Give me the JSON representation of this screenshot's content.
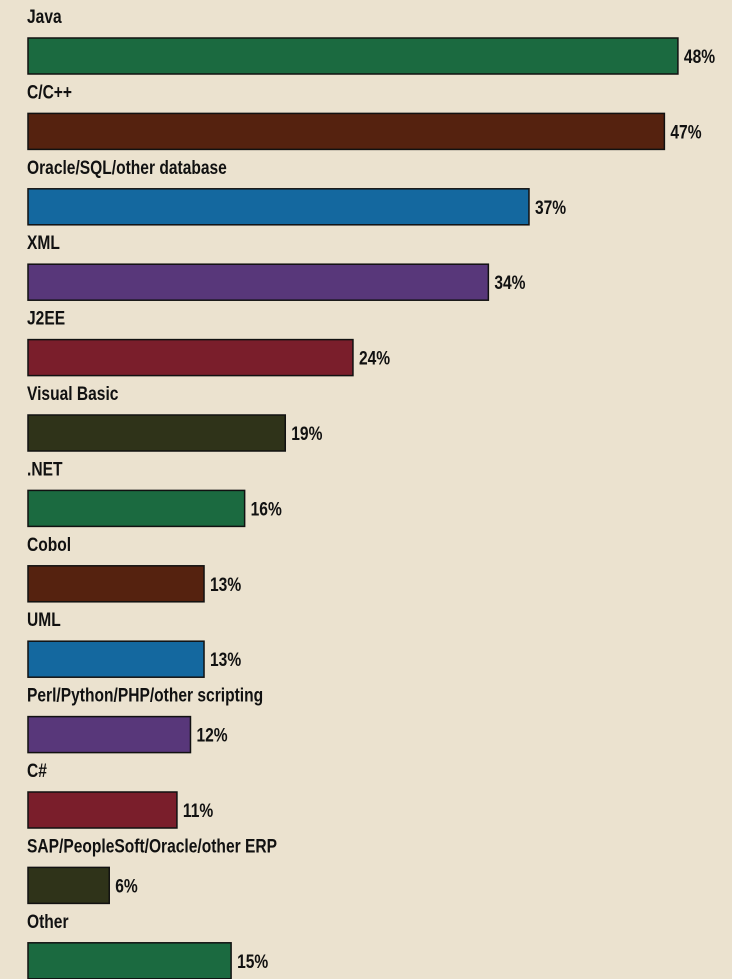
{
  "chart_data": {
    "type": "bar",
    "orientation": "horizontal",
    "categories": [
      "Java",
      "C/C++",
      "Oracle/SQL/other database",
      "XML",
      "J2EE",
      "Visual Basic",
      ".NET",
      "Cobol",
      "UML",
      "Perl/Python/PHP/other scripting",
      "C#",
      "SAP/PeopleSoft/Oracle/other ERP",
      "Other"
    ],
    "values": [
      48,
      47,
      37,
      34,
      24,
      19,
      16,
      13,
      13,
      12,
      11,
      6,
      15
    ],
    "value_labels": [
      "48%",
      "47%",
      "37%",
      "34%",
      "24%",
      "19%",
      "16%",
      "13%",
      "13%",
      "12%",
      "11%",
      "6%",
      "15%"
    ],
    "colors": [
      "#1b6a40",
      "#55220f",
      "#14689f",
      "#58377a",
      "#7a1e2b",
      "#2f3319",
      "#1b6a40",
      "#55220f",
      "#14689f",
      "#58377a",
      "#7a1e2b",
      "#2f3319",
      "#1b6a40"
    ]
  }
}
